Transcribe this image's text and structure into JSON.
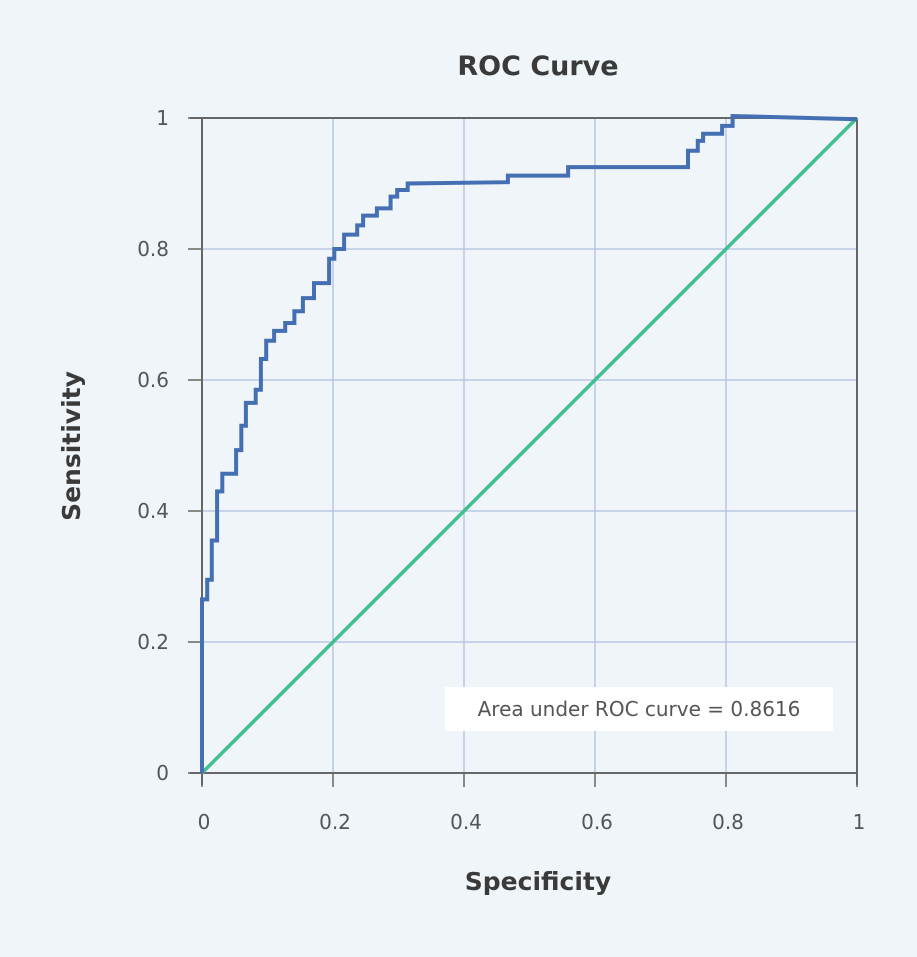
{
  "chart_data": {
    "type": "line",
    "title": "ROC Curve",
    "xlabel": "Specificity",
    "ylabel": "Sensitivity",
    "xlim": [
      0,
      1
    ],
    "ylim": [
      0,
      1
    ],
    "grid": true,
    "x_ticks": [
      "0",
      "0.2",
      "0.4",
      "0.6",
      "0.8",
      "1"
    ],
    "y_ticks": [
      "0",
      "0.2",
      "0.4",
      "0.6",
      "0.8",
      "1"
    ],
    "x_tick_values": [
      0,
      0.2,
      0.4,
      0.6,
      0.8,
      1
    ],
    "y_tick_values": [
      0,
      0.2,
      0.4,
      0.6,
      0.8,
      1
    ],
    "annotation": "Area under ROC curve = 0.8616",
    "annotation_position": "bottom-right",
    "series": [
      {
        "name": "ROC curve",
        "color": "#4470b3",
        "step": true,
        "points": [
          [
            0,
            0
          ],
          [
            0,
            0.265
          ],
          [
            0.008,
            0.265
          ],
          [
            0.008,
            0.295
          ],
          [
            0.015,
            0.295
          ],
          [
            0.015,
            0.355
          ],
          [
            0.023,
            0.355
          ],
          [
            0.023,
            0.43
          ],
          [
            0.031,
            0.43
          ],
          [
            0.031,
            0.457
          ],
          [
            0.052,
            0.457
          ],
          [
            0.052,
            0.493
          ],
          [
            0.06,
            0.493
          ],
          [
            0.06,
            0.53
          ],
          [
            0.067,
            0.53
          ],
          [
            0.067,
            0.565
          ],
          [
            0.082,
            0.565
          ],
          [
            0.082,
            0.585
          ],
          [
            0.09,
            0.585
          ],
          [
            0.09,
            0.632
          ],
          [
            0.098,
            0.632
          ],
          [
            0.098,
            0.66
          ],
          [
            0.11,
            0.66
          ],
          [
            0.11,
            0.675
          ],
          [
            0.127,
            0.675
          ],
          [
            0.127,
            0.687
          ],
          [
            0.141,
            0.687
          ],
          [
            0.141,
            0.705
          ],
          [
            0.154,
            0.705
          ],
          [
            0.154,
            0.725
          ],
          [
            0.171,
            0.725
          ],
          [
            0.171,
            0.748
          ],
          [
            0.194,
            0.748
          ],
          [
            0.194,
            0.785
          ],
          [
            0.202,
            0.785
          ],
          [
            0.202,
            0.8
          ],
          [
            0.217,
            0.8
          ],
          [
            0.217,
            0.822
          ],
          [
            0.237,
            0.822
          ],
          [
            0.237,
            0.836
          ],
          [
            0.246,
            0.836
          ],
          [
            0.246,
            0.851
          ],
          [
            0.267,
            0.851
          ],
          [
            0.267,
            0.862
          ],
          [
            0.288,
            0.862
          ],
          [
            0.288,
            0.88
          ],
          [
            0.298,
            0.88
          ],
          [
            0.298,
            0.89
          ],
          [
            0.314,
            0.89
          ],
          [
            0.314,
            0.9
          ],
          [
            0.467,
            0.902
          ],
          [
            0.467,
            0.912
          ],
          [
            0.559,
            0.912
          ],
          [
            0.559,
            0.925
          ],
          [
            0.742,
            0.925
          ],
          [
            0.742,
            0.95
          ],
          [
            0.757,
            0.95
          ],
          [
            0.757,
            0.965
          ],
          [
            0.765,
            0.965
          ],
          [
            0.765,
            0.976
          ],
          [
            0.794,
            0.976
          ],
          [
            0.794,
            0.988
          ],
          [
            0.81,
            0.988
          ],
          [
            0.81,
            1.003
          ],
          [
            1,
            0.998
          ]
        ]
      },
      {
        "name": "Reference line",
        "color": "#3fbf8f",
        "points": [
          [
            0,
            0
          ],
          [
            1,
            1
          ]
        ]
      }
    ]
  }
}
